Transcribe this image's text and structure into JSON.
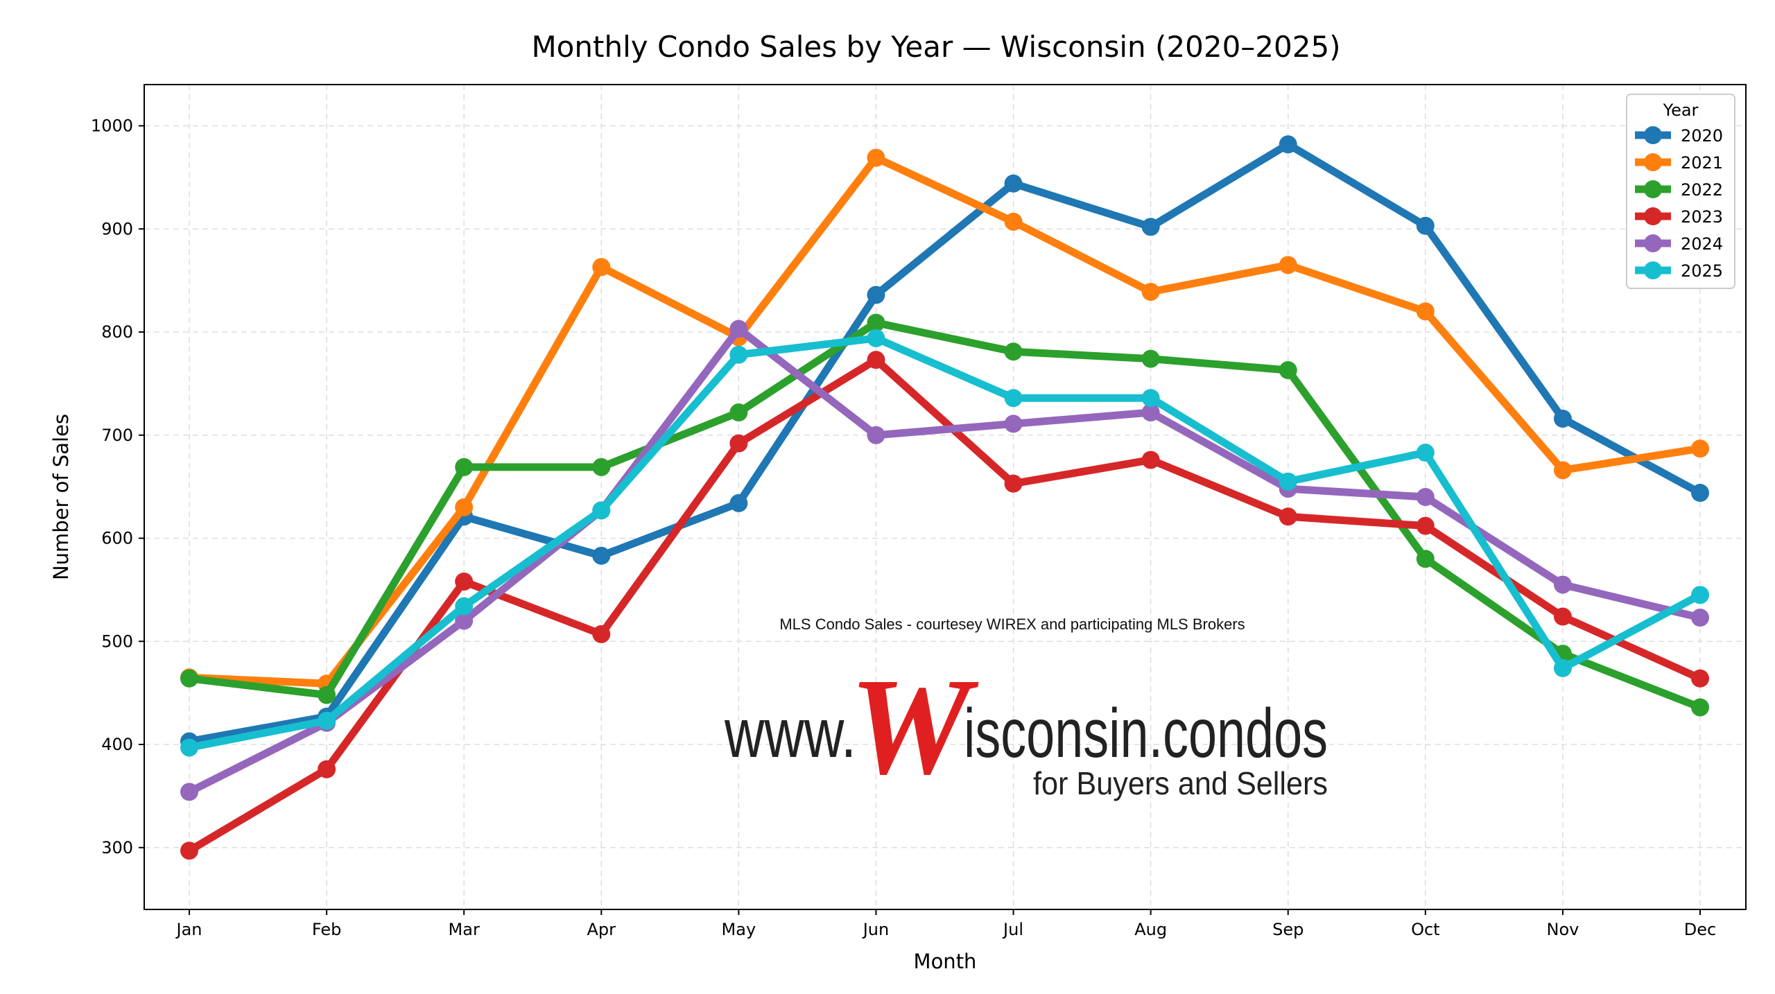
{
  "chart_data": {
    "type": "line",
    "title": "Monthly Condo Sales by Year — Wisconsin (2020–2025)",
    "xlabel": "Month",
    "ylabel": "Number of Sales",
    "categories": [
      "Jan",
      "Feb",
      "Mar",
      "Apr",
      "May",
      "Jun",
      "Jul",
      "Aug",
      "Sep",
      "Oct",
      "Nov",
      "Dec"
    ],
    "ylim": [
      240,
      1040
    ],
    "yticks": [
      300,
      400,
      500,
      600,
      700,
      800,
      900,
      1000
    ],
    "grid": true,
    "legend": {
      "title": "Year",
      "placement": "top-right"
    },
    "series": [
      {
        "name": "2020",
        "color": "#1f77b4",
        "values": [
          403,
          427,
          621,
          583,
          634,
          836,
          944,
          902,
          982,
          903,
          716,
          644
        ]
      },
      {
        "name": "2021",
        "color": "#ff7f0e",
        "values": [
          465,
          459,
          630,
          863,
          795,
          969,
          907,
          839,
          865,
          820,
          666,
          687
        ]
      },
      {
        "name": "2022",
        "color": "#2ca02c",
        "values": [
          464,
          448,
          669,
          669,
          722,
          809,
          781,
          774,
          763,
          580,
          488,
          436
        ]
      },
      {
        "name": "2023",
        "color": "#d62728",
        "values": [
          297,
          376,
          558,
          507,
          692,
          773,
          653,
          676,
          621,
          612,
          524,
          464
        ]
      },
      {
        "name": "2024",
        "color": "#9467bd",
        "values": [
          354,
          421,
          520,
          627,
          803,
          700,
          711,
          722,
          648,
          640,
          555,
          523
        ]
      },
      {
        "name": "2025",
        "color": "#17becf",
        "values": [
          397,
          423,
          534,
          627,
          778,
          794,
          736,
          736,
          655,
          683,
          474,
          545
        ]
      }
    ]
  },
  "watermark": {
    "credit": "MLS Condo Sales - courtesey WIREX and participating MLS Brokers",
    "prefix": "www.",
    "letter": "W",
    "suffix": "isconsin.condos",
    "tagline": "for Buyers and Sellers"
  }
}
